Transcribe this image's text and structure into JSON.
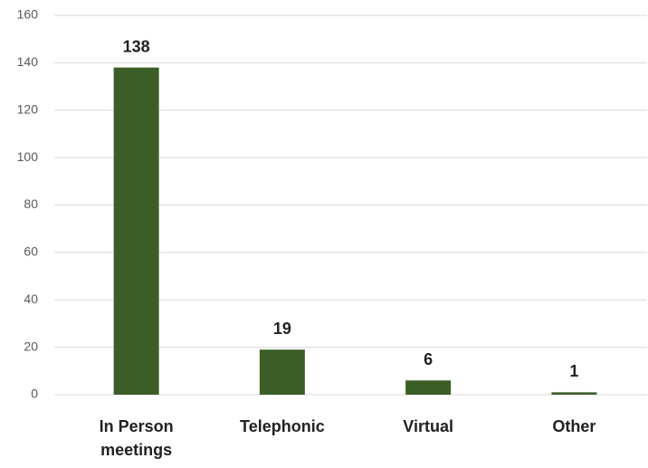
{
  "chart_data": {
    "type": "bar",
    "categories": [
      "In Person meetings",
      "Telephonic",
      "Virtual",
      "Other"
    ],
    "values": [
      138,
      19,
      6,
      1
    ],
    "color": "#3b5e27",
    "ylim": [
      0,
      160
    ],
    "yticks": [
      0,
      20,
      40,
      60,
      80,
      100,
      120,
      140,
      160
    ],
    "grid": true
  }
}
